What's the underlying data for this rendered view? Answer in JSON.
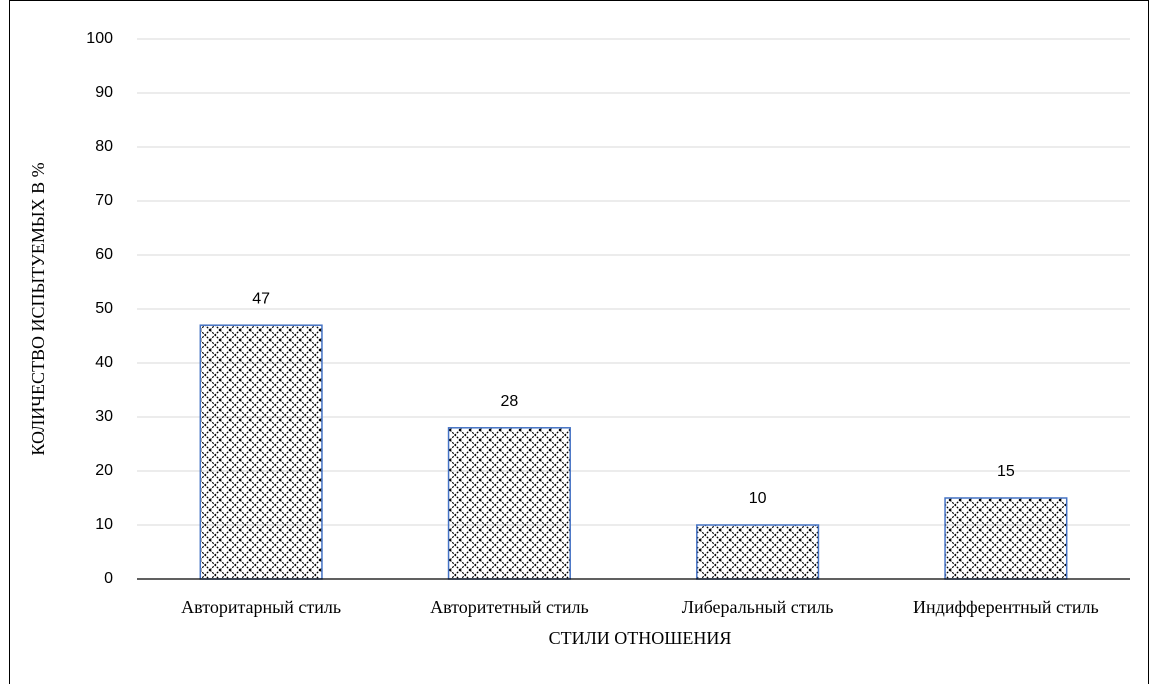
{
  "chart_data": {
    "type": "bar",
    "x_label": "СТИЛИ ОТНОШЕНИЯ",
    "y_label": "КОЛИЧЕСТВО ИСПЫТУЕМЫХ В %",
    "categories": [
      "Авторитарный стиль",
      "Авторитетный стиль",
      "Либеральный стиль",
      "Индифферентный стиль"
    ],
    "values": [
      47,
      28,
      10,
      15
    ],
    "color": "#4472c4",
    "ylim": [
      0,
      100
    ],
    "yticks": [
      0,
      10,
      20,
      30,
      40,
      50,
      60,
      70,
      80,
      90,
      100
    ],
    "grid": true
  }
}
